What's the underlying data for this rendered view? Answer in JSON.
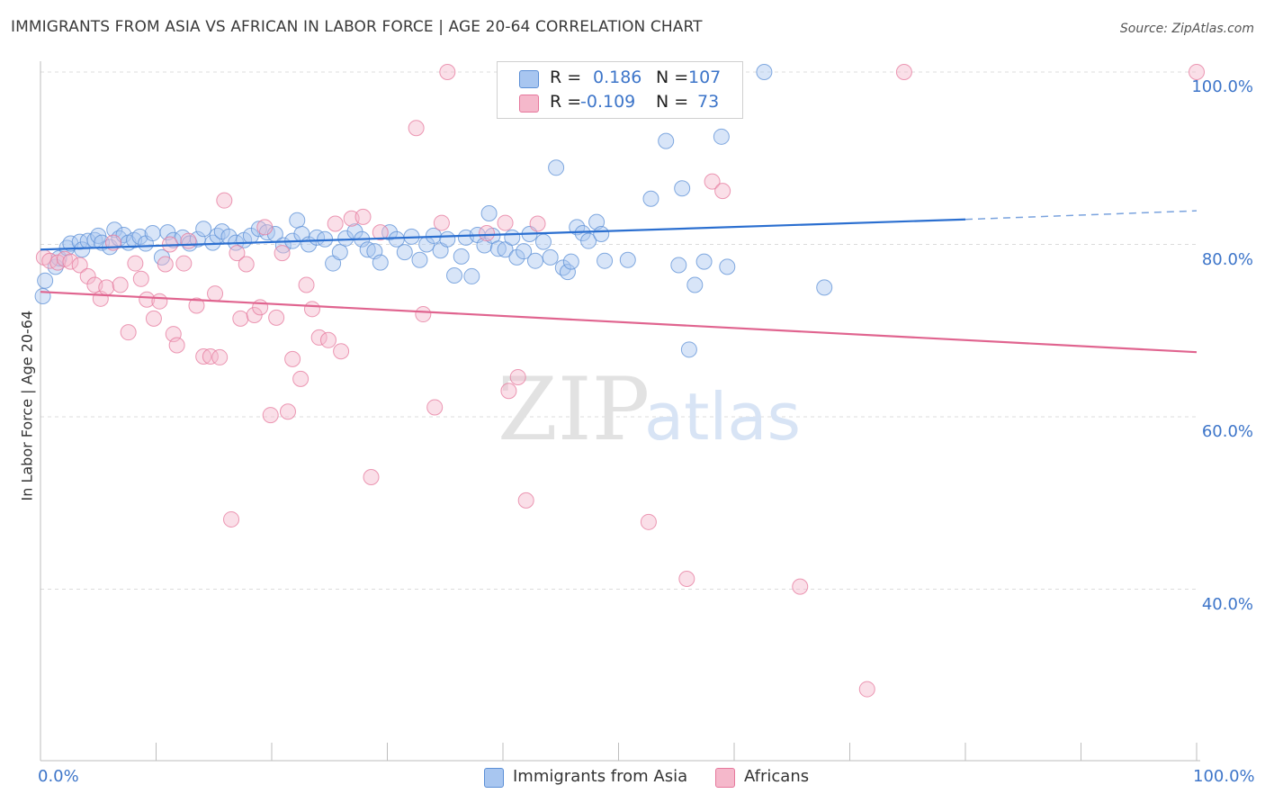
{
  "title": "IMMIGRANTS FROM ASIA VS AFRICAN IN LABOR FORCE | AGE 20-64 CORRELATION CHART",
  "source": "Source: ZipAtlas.com",
  "watermark": {
    "zip": "ZIP",
    "atlas": "atlas"
  },
  "legend_stats": [
    {
      "r_label": "R =",
      "r_value": "0.186",
      "n_label": "N =",
      "n_value": "107",
      "color": "#a8c6f0"
    },
    {
      "r_label": "R =",
      "r_value": "-0.109",
      "n_label": "N =",
      "n_value": "73",
      "color": "#f5b8cb"
    }
  ],
  "bottom_legend": [
    {
      "label": "Immigrants from Asia",
      "color": "#a8c6f0"
    },
    {
      "label": "Africans",
      "color": "#f5b8cb"
    }
  ],
  "chart_data": {
    "type": "scatter",
    "xlabel": "",
    "ylabel": "In Labor Force | Age 20-64",
    "x_tick_labels": [
      "0.0%",
      "100.0%"
    ],
    "y_tick_labels": [
      "100.0%",
      "80.0%",
      "60.0%",
      "40.0%"
    ],
    "y_ticks": [
      100,
      80,
      60,
      40
    ],
    "xlim": [
      0,
      100
    ],
    "ylim": [
      20,
      102
    ],
    "grid": true,
    "legend_placement": "top-center",
    "series": [
      {
        "name": "Immigrants from Asia",
        "color": "#5b8fd6",
        "fill": "#a8c6f0",
        "trend": {
          "x0": 0,
          "y0": 79.4,
          "x1": 80,
          "y1": 82.9,
          "dash_to_x": 100,
          "dash_to_y": 83.9
        },
        "points": [
          [
            0.2,
            74
          ],
          [
            0.4,
            75.8
          ],
          [
            1.3,
            77.4
          ],
          [
            1.6,
            78.4
          ],
          [
            2.3,
            79.6
          ],
          [
            2.6,
            80.1
          ],
          [
            3.4,
            80.3
          ],
          [
            3.6,
            79.4
          ],
          [
            4.1,
            80.4
          ],
          [
            4.7,
            80.5
          ],
          [
            5,
            81
          ],
          [
            5.3,
            80.2
          ],
          [
            6,
            79.7
          ],
          [
            6.4,
            81.7
          ],
          [
            6.8,
            80.7
          ],
          [
            7.2,
            81.1
          ],
          [
            7.6,
            80.2
          ],
          [
            8.1,
            80.5
          ],
          [
            8.6,
            80.9
          ],
          [
            9.1,
            80.1
          ],
          [
            9.7,
            81.3
          ],
          [
            10.5,
            78.5
          ],
          [
            11,
            81.4
          ],
          [
            11.5,
            80.5
          ],
          [
            12.3,
            80.8
          ],
          [
            12.9,
            80.1
          ],
          [
            13.6,
            80.6
          ],
          [
            14.1,
            81.8
          ],
          [
            14.9,
            80.2
          ],
          [
            15.3,
            81
          ],
          [
            15.7,
            81.5
          ],
          [
            16.3,
            80.9
          ],
          [
            16.9,
            80.2
          ],
          [
            17.6,
            80.5
          ],
          [
            18.2,
            81
          ],
          [
            18.9,
            81.8
          ],
          [
            19.6,
            81.4
          ],
          [
            20.3,
            81.2
          ],
          [
            21,
            79.9
          ],
          [
            21.8,
            80.4
          ],
          [
            22.2,
            82.8
          ],
          [
            22.6,
            81.2
          ],
          [
            23.2,
            80
          ],
          [
            23.9,
            80.8
          ],
          [
            24.6,
            80.6
          ],
          [
            25.3,
            77.8
          ],
          [
            25.9,
            79.1
          ],
          [
            26.4,
            80.7
          ],
          [
            27.2,
            81.5
          ],
          [
            27.8,
            80.6
          ],
          [
            28.3,
            79.4
          ],
          [
            28.9,
            79.2
          ],
          [
            29.4,
            77.9
          ],
          [
            30.2,
            81.4
          ],
          [
            30.8,
            80.6
          ],
          [
            31.5,
            79.1
          ],
          [
            32.1,
            80.9
          ],
          [
            32.8,
            78.2
          ],
          [
            33.4,
            80
          ],
          [
            34,
            81
          ],
          [
            34.6,
            79.3
          ],
          [
            35.2,
            80.6
          ],
          [
            35.8,
            76.4
          ],
          [
            36.4,
            78.6
          ],
          [
            36.8,
            80.8
          ],
          [
            37.3,
            76.3
          ],
          [
            37.8,
            81.1
          ],
          [
            38.4,
            79.9
          ],
          [
            38.8,
            83.6
          ],
          [
            39.1,
            81
          ],
          [
            39.6,
            79.5
          ],
          [
            40.2,
            79.4
          ],
          [
            40.8,
            80.8
          ],
          [
            41.2,
            78.5
          ],
          [
            41.8,
            79.2
          ],
          [
            42.3,
            81.2
          ],
          [
            42.8,
            78.1
          ],
          [
            43.5,
            80.3
          ],
          [
            44.1,
            78.5
          ],
          [
            44.6,
            88.9
          ],
          [
            45.2,
            77.3
          ],
          [
            45.6,
            76.8
          ],
          [
            45.9,
            78
          ],
          [
            46.4,
            82
          ],
          [
            46.9,
            81.3
          ],
          [
            47.4,
            80.4
          ],
          [
            48.1,
            82.6
          ],
          [
            48.5,
            81.2
          ],
          [
            48.8,
            78.1
          ],
          [
            50.2,
            100
          ],
          [
            50.8,
            78.2
          ],
          [
            52.8,
            85.3
          ],
          [
            54.1,
            92
          ],
          [
            55.2,
            77.6
          ],
          [
            55.5,
            86.5
          ],
          [
            56.1,
            67.8
          ],
          [
            56.6,
            75.3
          ],
          [
            57.4,
            78
          ],
          [
            58.9,
            92.5
          ],
          [
            59.4,
            77.4
          ],
          [
            62.6,
            100
          ],
          [
            67.8,
            75
          ]
        ]
      },
      {
        "name": "Africans",
        "color": "#e6789c",
        "fill": "#f5b8cb",
        "trend": {
          "x0": 0,
          "y0": 74.5,
          "x1": 100,
          "y1": 67.5
        },
        "points": [
          [
            0.3,
            78.5
          ],
          [
            0.8,
            78.1
          ],
          [
            1.5,
            77.9
          ],
          [
            2.1,
            78.3
          ],
          [
            2.6,
            78
          ],
          [
            3.4,
            77.6
          ],
          [
            4.1,
            76.3
          ],
          [
            4.7,
            75.3
          ],
          [
            5.2,
            73.7
          ],
          [
            5.7,
            75
          ],
          [
            6.3,
            80.2
          ],
          [
            6.9,
            75.3
          ],
          [
            7.6,
            69.8
          ],
          [
            8.2,
            77.8
          ],
          [
            8.7,
            76
          ],
          [
            9.2,
            73.6
          ],
          [
            9.8,
            71.4
          ],
          [
            10.3,
            73.4
          ],
          [
            10.8,
            77.7
          ],
          [
            11.2,
            80
          ],
          [
            11.5,
            69.6
          ],
          [
            11.8,
            68.3
          ],
          [
            12.4,
            77.8
          ],
          [
            12.8,
            80.4
          ],
          [
            13.5,
            72.9
          ],
          [
            14.1,
            67
          ],
          [
            14.7,
            67
          ],
          [
            15.1,
            74.3
          ],
          [
            15.5,
            66.9
          ],
          [
            15.9,
            85.1
          ],
          [
            16.5,
            48.1
          ],
          [
            17,
            79
          ],
          [
            17.3,
            71.4
          ],
          [
            17.8,
            77.7
          ],
          [
            18.5,
            71.8
          ],
          [
            19,
            72.7
          ],
          [
            19.4,
            82
          ],
          [
            19.9,
            60.2
          ],
          [
            20.4,
            71.5
          ],
          [
            20.9,
            79
          ],
          [
            21.4,
            60.6
          ],
          [
            21.8,
            66.7
          ],
          [
            22.5,
            64.4
          ],
          [
            23,
            75.3
          ],
          [
            23.5,
            72.5
          ],
          [
            24.1,
            69.2
          ],
          [
            24.9,
            68.9
          ],
          [
            25.5,
            82.4
          ],
          [
            26,
            67.6
          ],
          [
            26.9,
            83
          ],
          [
            27.9,
            83.2
          ],
          [
            28.6,
            53
          ],
          [
            29.4,
            81.4
          ],
          [
            32.5,
            93.5
          ],
          [
            33.1,
            71.9
          ],
          [
            34.1,
            61.1
          ],
          [
            34.7,
            82.5
          ],
          [
            35.2,
            100
          ],
          [
            38.6,
            81.3
          ],
          [
            40.2,
            82.5
          ],
          [
            40.5,
            63
          ],
          [
            41.3,
            64.6
          ],
          [
            42,
            50.3
          ],
          [
            43,
            82.4
          ],
          [
            52.6,
            47.8
          ],
          [
            55.9,
            41.2
          ],
          [
            58.1,
            87.3
          ],
          [
            59,
            86.2
          ],
          [
            65.7,
            40.3
          ],
          [
            71.5,
            28.4
          ],
          [
            74.7,
            100
          ],
          [
            100,
            100
          ]
        ]
      }
    ]
  }
}
